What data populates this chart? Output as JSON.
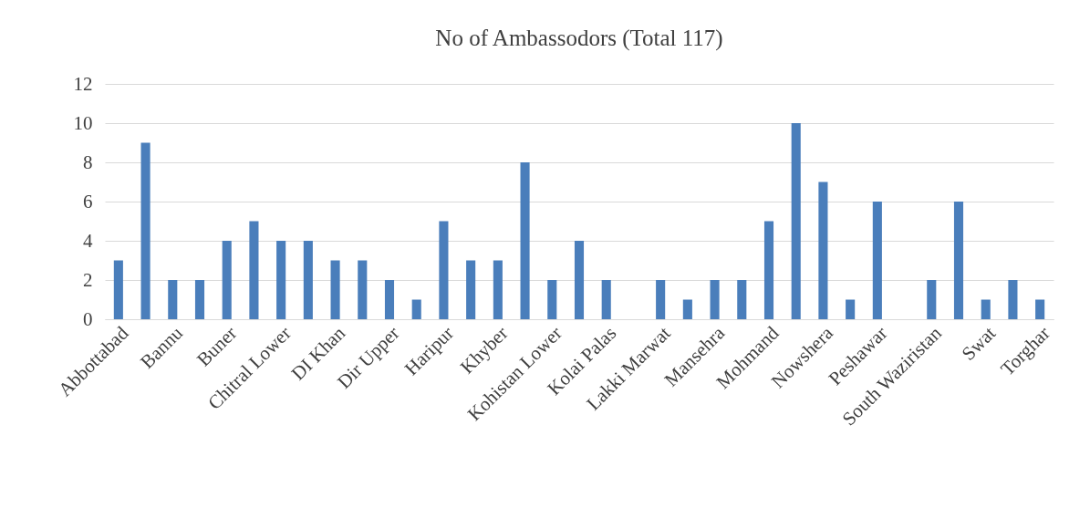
{
  "chart_data": {
    "type": "bar",
    "title": "No of Ambassodors (Total 117)",
    "categories": [
      "Abbottabad",
      null,
      "Bannu",
      null,
      "Buner",
      null,
      "Chitral Lower",
      null,
      "DI Khan",
      null,
      "Dir Upper",
      null,
      "Haripur",
      null,
      "Khyber",
      null,
      "Kohistan Lower",
      null,
      "Kolai Palas",
      null,
      "Lakki Marwat",
      null,
      "Mansehra",
      null,
      "Mohmand",
      null,
      "Nowshera",
      null,
      "Peshawar",
      null,
      "South Waziristan",
      null,
      "Swat",
      null,
      "Torghar"
    ],
    "values": [
      3,
      9,
      2,
      2,
      4,
      5,
      4,
      4,
      3,
      3,
      2,
      1,
      5,
      3,
      3,
      8,
      2,
      4,
      2,
      0,
      2,
      1,
      2,
      2,
      5,
      10,
      7,
      1,
      6,
      0,
      2,
      6,
      1,
      2,
      1
    ],
    "color": "#4a7ebb",
    "ylim": [
      0,
      12
    ],
    "yticks": [
      0,
      2,
      4,
      6,
      8,
      10,
      12
    ],
    "grid": "y"
  }
}
